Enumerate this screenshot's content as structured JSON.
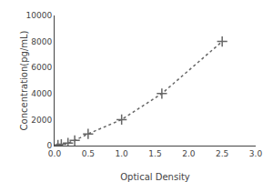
{
  "chart_data": {
    "type": "line",
    "x": [
      0.05,
      0.1,
      0.2,
      0.3,
      0.5,
      1.0,
      1.6,
      2.5
    ],
    "values": [
      50,
      100,
      200,
      400,
      900,
      2000,
      4000,
      8000
    ],
    "xlabel": "Optical Density",
    "ylabel": "Concentration(pg/mL)",
    "xlim": [
      0,
      3
    ],
    "ylim": [
      0,
      10000
    ],
    "xticks": [
      {
        "value": 0,
        "label": "0.0"
      },
      0.5,
      {
        "value": 1,
        "label": "1.0"
      },
      1.5,
      {
        "value": 2,
        "label": "2.0"
      },
      2.5,
      {
        "value": 3,
        "label": "3.0"
      }
    ],
    "yticks": [
      0,
      2000,
      4000,
      6000,
      8000,
      10000
    ],
    "color": "#666666",
    "marker": "plus",
    "line_style": "dotted",
    "grid": false
  }
}
